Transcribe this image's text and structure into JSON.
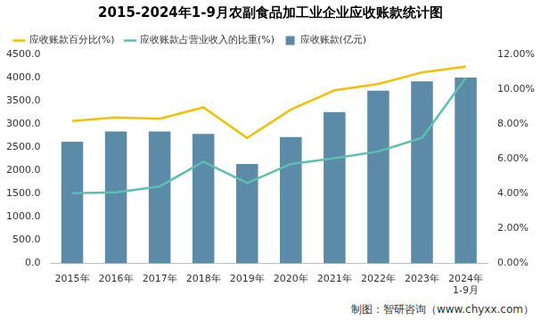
{
  "chart_data": {
    "type": "bar",
    "title": "2015-2024年1-9月农副食品加工业企业应收账款统计图",
    "source": "制图：智研咨询（www.chyxx.com）",
    "categories": [
      "2015年",
      "2016年",
      "2017年",
      "2018年",
      "2019年",
      "2020年",
      "2021年",
      "2022年",
      "2023年",
      "2024年\n1-9月"
    ],
    "series": [
      {
        "name": "应收账款(亿元)",
        "type": "bar",
        "color": "#5b8ba6",
        "values": [
          2620,
          2840,
          2840,
          2790,
          2140,
          2720,
          3260,
          3720,
          3920,
          4000
        ]
      },
      {
        "name": "应收账款百分比(%)",
        "type": "line",
        "axis": "y2",
        "color": "#f5c000",
        "values": [
          8.18,
          8.38,
          8.31,
          8.96,
          7.2,
          8.83,
          9.94,
          10.3,
          10.97,
          11.3
        ]
      },
      {
        "name": "应收账款占营业收入的比重(%)",
        "type": "line",
        "axis": "y2",
        "color": "#5cbfb0",
        "values": [
          4.03,
          4.09,
          4.42,
          5.84,
          4.61,
          5.71,
          6.04,
          6.43,
          7.21,
          10.65
        ]
      }
    ],
    "ylim": [
      0,
      4500
    ],
    "yticks": [
      {
        "value": 0,
        "label": "0.0"
      },
      {
        "value": 500,
        "label": "500.0"
      },
      {
        "value": 1000,
        "label": "1000.0"
      },
      {
        "value": 1500,
        "label": "1500.0"
      },
      {
        "value": 2000,
        "label": "2000.0"
      },
      {
        "value": 2500,
        "label": "2500.0"
      },
      {
        "value": 3000,
        "label": "3000.0"
      },
      {
        "value": 3500,
        "label": "3500.0"
      },
      {
        "value": 4000,
        "label": "4000.0"
      },
      {
        "value": 4500,
        "label": "4500.0"
      }
    ],
    "y2lim": [
      0,
      12
    ],
    "y2ticks": [
      {
        "value": 0,
        "label": "0.00%"
      },
      {
        "value": 2,
        "label": "2.00%"
      },
      {
        "value": 4,
        "label": "4.00%"
      },
      {
        "value": 6,
        "label": "6.00%"
      },
      {
        "value": 8,
        "label": "8.00%"
      },
      {
        "value": 10,
        "label": "10.00%"
      },
      {
        "value": 12,
        "label": "12.00%"
      }
    ],
    "grid": false,
    "legend": "top"
  }
}
